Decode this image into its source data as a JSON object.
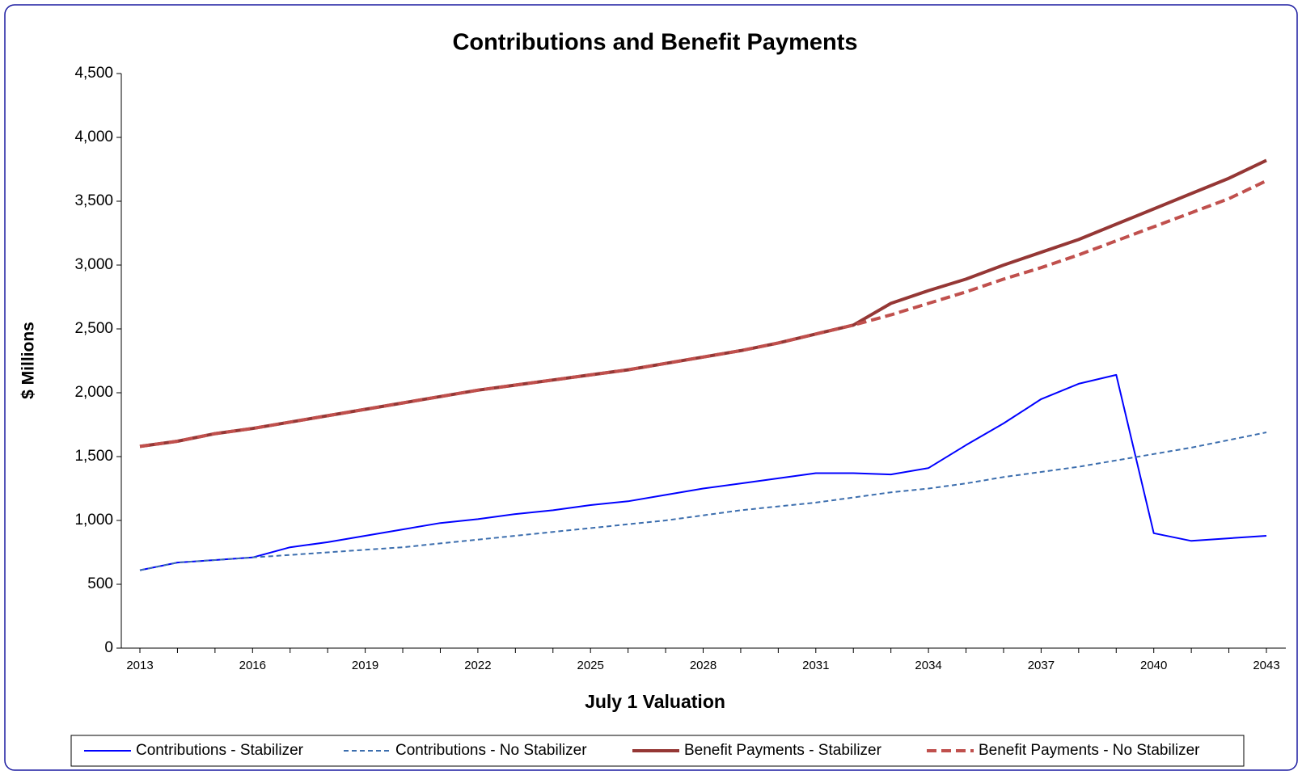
{
  "chart_data": {
    "type": "line",
    "title": "Contributions and Benefit Payments",
    "x_label": "July 1 Valuation",
    "y_label": "$ Millions",
    "categories": [
      "2013",
      null,
      null,
      "2016",
      null,
      null,
      "2019",
      null,
      null,
      "2022",
      null,
      null,
      "2025",
      null,
      null,
      "2028",
      null,
      null,
      "2031",
      null,
      null,
      "2034",
      null,
      null,
      "2037",
      null,
      null,
      "2040",
      null,
      null,
      "2043"
    ],
    "ylim": [
      0,
      4500
    ],
    "yticks": [
      0,
      500,
      {
        "value": 1000,
        "label": "1,000"
      },
      {
        "value": 1500,
        "label": "1,500"
      },
      {
        "value": 2000,
        "label": "2,000"
      },
      {
        "value": 2500,
        "label": "2,500"
      },
      {
        "value": 3000,
        "label": "3,000"
      },
      {
        "value": 3500,
        "label": "3,500"
      },
      {
        "value": 4000,
        "label": "4,000"
      },
      {
        "value": 4500,
        "label": "4,500"
      }
    ],
    "grid": false,
    "legend": "bottom",
    "series": [
      {
        "name": "Contributions - Stabilizer",
        "color": "#0000ff",
        "dashed": false,
        "line_width": 2,
        "values": [
          610,
          670,
          690,
          710,
          790,
          830,
          880,
          930,
          980,
          1010,
          1050,
          1080,
          1120,
          1150,
          1200,
          1250,
          1290,
          1330,
          1370,
          1370,
          1360,
          1410,
          1590,
          1760,
          1950,
          2070,
          2140,
          900,
          840,
          860,
          880
        ]
      },
      {
        "name": "Contributions - No Stabilizer",
        "color": "#3c6eae",
        "dashed": true,
        "line_width": 2,
        "values": [
          610,
          670,
          690,
          710,
          730,
          750,
          770,
          790,
          820,
          850,
          880,
          910,
          940,
          970,
          1000,
          1040,
          1080,
          1110,
          1140,
          1180,
          1220,
          1250,
          1290,
          1340,
          1380,
          1420,
          1470,
          1520,
          1570,
          1630,
          1690
        ]
      },
      {
        "name": "Benefit Payments - Stabilizer",
        "color": "#953735",
        "dashed": false,
        "line_width": 4,
        "values": [
          1580,
          1620,
          1680,
          1720,
          1770,
          1820,
          1870,
          1920,
          1970,
          2020,
          2060,
          2100,
          2140,
          2180,
          2230,
          2280,
          2330,
          2390,
          2460,
          2530,
          2700,
          2800,
          2890,
          3000,
          3100,
          3200,
          3320,
          3440,
          3560,
          3680,
          3820
        ]
      },
      {
        "name": "Benefit Payments - No Stabilizer",
        "color": "#c0504d",
        "dashed": true,
        "line_width": 4,
        "values": [
          1580,
          1620,
          1680,
          1720,
          1770,
          1820,
          1870,
          1920,
          1970,
          2020,
          2060,
          2100,
          2140,
          2180,
          2230,
          2280,
          2330,
          2390,
          2460,
          2530,
          2610,
          2700,
          2790,
          2890,
          2980,
          3080,
          3190,
          3300,
          3410,
          3520,
          3660
        ]
      }
    ]
  }
}
